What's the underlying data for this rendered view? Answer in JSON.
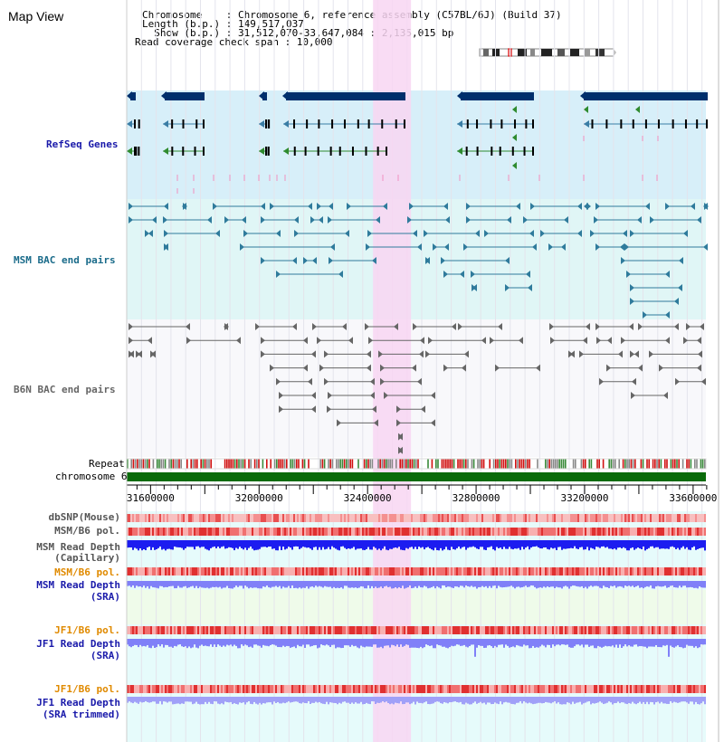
{
  "header": {
    "title": "Map View",
    "info_lines": [
      "Chromosome    : Chromosome 6, reference assembly (C57BL/6J) (Build 37)",
      "Length (b.p.) : 149,517,037",
      "  Show (b.p.) : 31,512,070-33,647,084 : 2,135,015 bp",
      "Read coverage check span : 10,000"
    ]
  },
  "tracks": {
    "refseq": "RefSeq Genes",
    "msm_bac": "MSM BAC end pairs",
    "b6n_bac": "B6N BAC end pairs",
    "repeat": "Repeat",
    "chromosome": "chromosome 6",
    "dbsnp": "dbSNP(Mouse)",
    "msm_pol1": "MSM/B6 pol.",
    "msm_depth_cap_1": "MSM Read Depth",
    "msm_depth_cap_2": "(Capillary)",
    "msm_pol2": "MSM/B6 pol.",
    "msm_depth_sra_1": "MSM Read Depth",
    "msm_depth_sra_2": "(SRA)",
    "jf1_pol1": "JF1/B6 pol.",
    "jf1_depth_sra_1": "JF1 Read Depth",
    "jf1_depth_sra_2": "(SRA)",
    "jf1_pol2": "JF1/B6 pol.",
    "jf1_depth_trim_1": "JF1 Read Depth",
    "jf1_depth_trim_2": "(SRA trimmed)"
  },
  "ruler": {
    "ticks": [
      31600000,
      32000000,
      32400000,
      32800000,
      33200000,
      33600000
    ]
  },
  "view": {
    "start": 31512070,
    "end": 33647084,
    "highlight": [
      32420000,
      32560000
    ]
  },
  "colors": {
    "refseq_bg": "#d7eff9",
    "msm_bg": "#e0f6f6",
    "b6n_bg": "#f8f8fb",
    "highlight": "#f8d6f2",
    "gene_dark": "#002f6c",
    "gene_blue": "#3a7da5",
    "gene_green": "#2f8b2f",
    "msm_bac": "#2f7b9c",
    "b6n_bac": "#666666",
    "chromosome_bar": "#0a6b0a",
    "depth_cap": "#1c1cf0",
    "depth_sra": "#8080f8",
    "label_blue": "#1a1aaa",
    "label_teal": "#1a6b8a",
    "label_orange": "#e08a00"
  }
}
